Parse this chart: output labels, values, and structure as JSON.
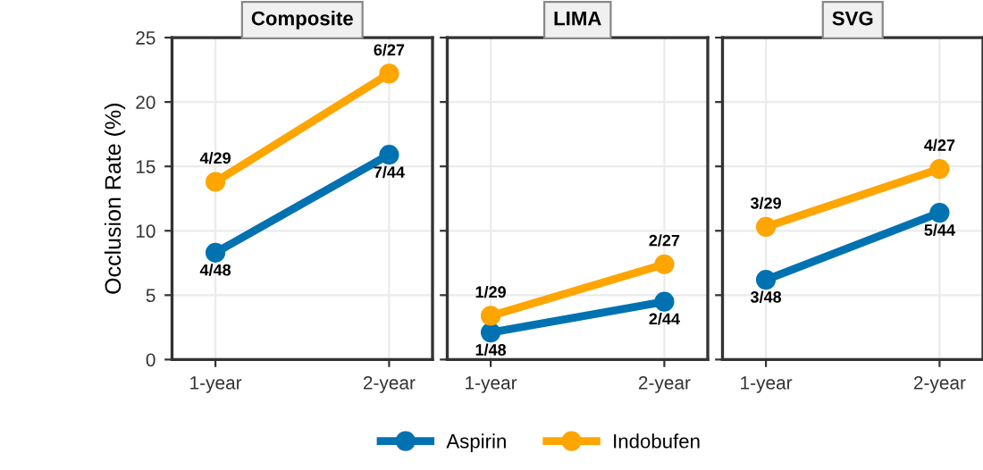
{
  "chart_data": [
    {
      "type": "line",
      "title": "Composite",
      "ylabel": "Occlusion Rate (%)",
      "categories": [
        "1-year",
        "2-year"
      ],
      "ylim": [
        0,
        25
      ],
      "yticks": [
        0,
        5,
        10,
        15,
        20,
        25
      ],
      "grid": true,
      "marker": "circle",
      "legend": "bottom",
      "tick_labels": true,
      "series": [
        {
          "name": "Aspirin",
          "color": "#0072b2",
          "values": [
            8.3,
            15.9
          ],
          "value_labels": [
            "4/48",
            "7/44"
          ]
        },
        {
          "name": "Indobufen",
          "color": "#ffa500",
          "values": [
            13.8,
            22.2
          ],
          "value_labels": [
            "4/29",
            "6/27"
          ]
        }
      ]
    },
    {
      "type": "line",
      "title": "LIMA",
      "categories": [
        "1-year",
        "2-year"
      ],
      "ylim": [
        0,
        25
      ],
      "grid": true,
      "marker": "circle",
      "tick_labels": "x",
      "series": [
        {
          "name": "Aspirin",
          "color": "#0072b2",
          "values": [
            2.1,
            4.5
          ],
          "value_labels": [
            "1/48",
            "2/44"
          ]
        },
        {
          "name": "Indobufen",
          "color": "#ffa500",
          "values": [
            3.4,
            7.4
          ],
          "value_labels": [
            "1/29",
            "2/27"
          ]
        }
      ]
    },
    {
      "type": "line",
      "title": "SVG",
      "categories": [
        "1-year",
        "2-year"
      ],
      "ylim": [
        0,
        25
      ],
      "grid": true,
      "marker": "circle",
      "tick_labels": "x",
      "series": [
        {
          "name": "Aspirin",
          "color": "#0072b2",
          "values": [
            6.2,
            11.4
          ],
          "value_labels": [
            "3/48",
            "5/44"
          ]
        },
        {
          "name": "Indobufen",
          "color": "#ffa500",
          "values": [
            10.3,
            14.8
          ],
          "value_labels": [
            "3/29",
            "4/27"
          ]
        }
      ]
    }
  ]
}
